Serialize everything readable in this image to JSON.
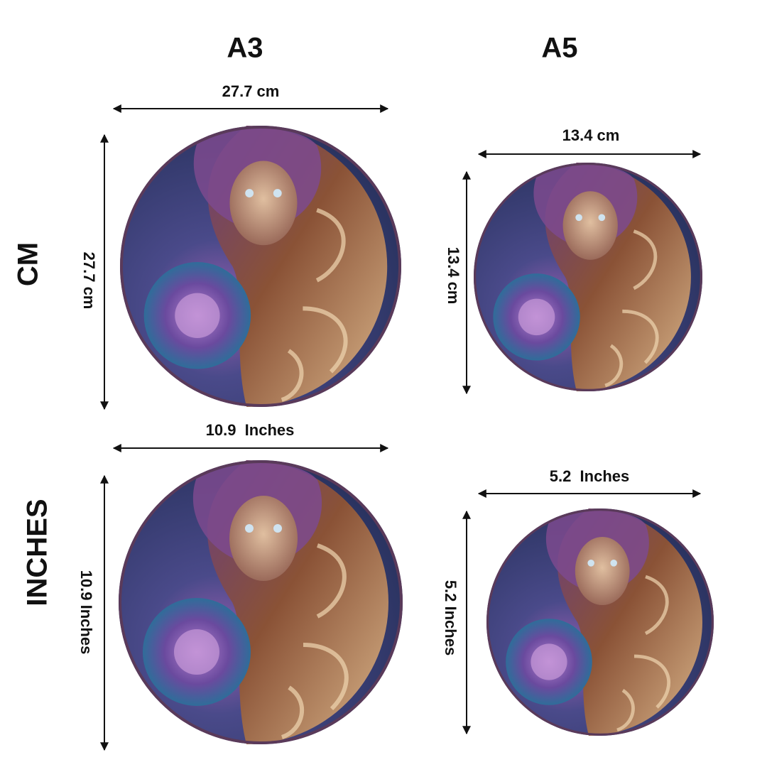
{
  "columns": [
    "A3",
    "A5"
  ],
  "rows": [
    "CM",
    "INCHES"
  ],
  "panels": [
    {
      "width": "27.7 cm",
      "height": "27.7 cm"
    },
    {
      "width": "13.4 cm",
      "height": "13.4 cm"
    },
    {
      "width": "10.9  Inches",
      "height": "10.9 Inches"
    },
    {
      "width": "5.2  Inches",
      "height": "5.2 Inches"
    }
  ]
}
